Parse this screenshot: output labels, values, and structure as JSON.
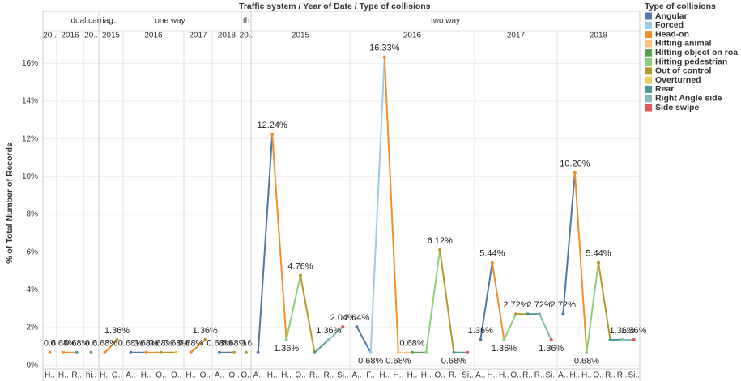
{
  "chart_data": {
    "type": "line",
    "title": "Traffic system  /  Year of Date  /  Type of collisions",
    "y_label": "% of Total Number of Records",
    "ylim": [
      -0.1,
      17.3
    ],
    "yticks": [
      {
        "value": 0,
        "label": "0%"
      },
      {
        "value": 2,
        "label": "2%"
      },
      {
        "value": 4,
        "label": "4%"
      },
      {
        "value": 6,
        "label": "6%"
      },
      {
        "value": 8,
        "label": "8%"
      },
      {
        "value": 10,
        "label": "10%"
      },
      {
        "value": 12,
        "label": "12%"
      },
      {
        "value": 14,
        "label": "14%"
      },
      {
        "value": 16,
        "label": "16%"
      }
    ],
    "grid": true,
    "legend": {
      "title": "Type of collisions",
      "items": [
        {
          "name": "Angular",
          "color": "#4e79a7"
        },
        {
          "name": "Forced",
          "color": "#a0cbe8"
        },
        {
          "name": "Head-on",
          "color": "#f28e2b"
        },
        {
          "name": "Hitting animal",
          "color": "#ffbe7d"
        },
        {
          "name": "Hitting object on roa",
          "color": "#59a14f"
        },
        {
          "name": "Hitting pedestrian",
          "color": "#8cd17d"
        },
        {
          "name": "Out of control",
          "color": "#b6992d"
        },
        {
          "name": "Overturned",
          "color": "#f1ce63"
        },
        {
          "name": "Rear",
          "color": "#499894"
        },
        {
          "name": "Right Angle side",
          "color": "#86bcb6"
        },
        {
          "name": "Side swipe",
          "color": "#e15759"
        }
      ]
    },
    "groups": [
      {
        "name": "dual carriag..",
        "panels": [
          {
            "year": "20..",
            "categories": [
              "H.."
            ],
            "values": [
              0.68
            ],
            "value_labels": [
              "0.6"
            ],
            "colors": [
              "#f28e2b"
            ]
          },
          {
            "year": "2016",
            "categories": [
              "H..",
              "R.."
            ],
            "values": [
              0.68,
              0.68
            ],
            "value_labels": [
              "0.68%",
              "0.68%"
            ],
            "colors": [
              "#f28e2b",
              "#499894"
            ]
          },
          {
            "year": "20..",
            "categories": [
              "hi.."
            ],
            "values": [
              0.68
            ],
            "value_labels": [
              "0.6"
            ],
            "colors": [
              "#59a14f"
            ]
          }
        ]
      },
      {
        "name": "one way",
        "panels": [
          {
            "year": "2015",
            "categories": [
              "H..",
              "O.."
            ],
            "values": [
              0.68,
              1.36
            ],
            "value_labels": [
              "0.68%",
              "1.36%"
            ],
            "colors": [
              "#f28e2b",
              "#b6992d"
            ]
          },
          {
            "year": "2016",
            "categories": [
              "A..",
              "H..",
              "O..",
              "O.."
            ],
            "values": [
              0.68,
              0.68,
              0.68,
              0.68
            ],
            "value_labels": [
              "0.68%",
              "0.68%",
              "0.68%",
              "0.68%"
            ],
            "colors": [
              "#4e79a7",
              "#f28e2b",
              "#b6992d",
              "#f1ce63"
            ]
          },
          {
            "year": "2017",
            "categories": [
              "H..",
              "O.."
            ],
            "values": [
              0.68,
              1.36
            ],
            "value_labels": [
              "0.68%",
              "1.36%"
            ],
            "colors": [
              "#f28e2b",
              "#b6992d"
            ]
          },
          {
            "year": "2018",
            "categories": [
              "A..",
              "O.."
            ],
            "values": [
              0.68,
              0.68
            ],
            "value_labels": [
              "0.68%",
              "0.68%"
            ],
            "colors": [
              "#4e79a7",
              "#b6992d"
            ]
          }
        ]
      },
      {
        "name": "th..",
        "panels": [
          {
            "year": "20..",
            "categories": [
              "O.."
            ],
            "values": [
              0.68
            ],
            "value_labels": [
              "0.6"
            ],
            "colors": [
              "#b6992d"
            ]
          }
        ]
      },
      {
        "name": "two way",
        "panels": [
          {
            "year": "2015",
            "categories": [
              "A..",
              "H..",
              "H..",
              "O..",
              "R..",
              "R..",
              "Si.."
            ],
            "values": [
              0.68,
              12.24,
              1.36,
              4.76,
              0.68,
              1.36,
              2.04
            ],
            "value_labels": [
              null,
              "12.24%",
              "1.36%",
              "4.76%",
              null,
              "1.36%",
              "2.04%"
            ],
            "colors": [
              "#4e79a7",
              "#f28e2b",
              "#8cd17d",
              "#b6992d",
              "#499894",
              "#86bcb6",
              "#e15759"
            ]
          },
          {
            "year": "2016",
            "categories": [
              "A..",
              "F..",
              "H..",
              "H..",
              "H..",
              "H..",
              "O..",
              "R..",
              "Si.."
            ],
            "values": [
              2.04,
              0.68,
              16.33,
              0.68,
              0.68,
              0.68,
              6.12,
              0.68,
              0.68
            ],
            "value_labels": [
              "2.04%",
              "0.68%",
              "16.33%",
              "0.68%",
              "0.68%",
              null,
              "6.12%",
              "0.68%",
              null
            ],
            "colors": [
              "#4e79a7",
              "#a0cbe8",
              "#f28e2b",
              "#ffbe7d",
              "#59a14f",
              "#8cd17d",
              "#b6992d",
              "#499894",
              "#e15759"
            ]
          },
          {
            "year": "2017",
            "categories": [
              "A..",
              "H..",
              "H..",
              "O..",
              "R..",
              "R..",
              "Si.."
            ],
            "values": [
              1.36,
              5.44,
              1.36,
              2.72,
              2.72,
              2.72,
              1.36
            ],
            "value_labels": [
              "1.36%",
              "5.44%",
              "1.36%",
              "2.72%",
              null,
              "2.72%",
              "1.36%"
            ],
            "colors": [
              "#4e79a7",
              "#f28e2b",
              "#8cd17d",
              "#b6992d",
              "#499894",
              "#86bcb6",
              "#e15759"
            ]
          },
          {
            "year": "2018",
            "categories": [
              "A..",
              "H..",
              "H..",
              "O..",
              "R..",
              "R..",
              "Si.."
            ],
            "values": [
              2.72,
              10.2,
              0.68,
              5.44,
              1.36,
              1.36,
              1.36
            ],
            "value_labels": [
              "2.72%",
              "10.20%",
              "0.68%",
              "5.44%",
              null,
              "1.36%",
              "1.36%"
            ],
            "colors": [
              "#4e79a7",
              "#f28e2b",
              "#8cd17d",
              "#b6992d",
              "#499894",
              "#86bcb6",
              "#e15759"
            ]
          }
        ]
      }
    ]
  }
}
